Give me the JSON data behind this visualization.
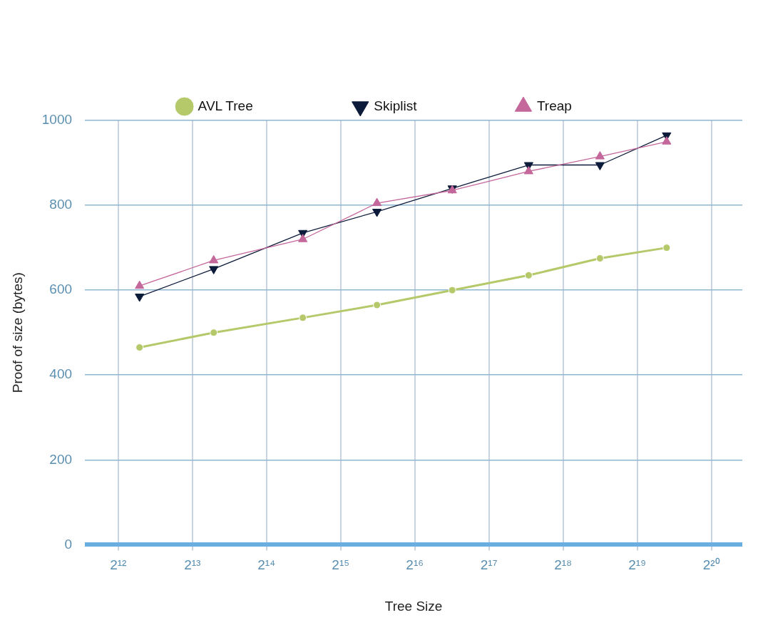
{
  "chart_data": {
    "type": "line",
    "xlabel": "Tree Size",
    "ylabel": "Proof of size (bytes)",
    "x": [
      5000,
      10000,
      23000,
      46000,
      93000,
      190000,
      370000,
      690000
    ],
    "series": [
      {
        "name": "AVL Tree",
        "color": "#b5c96a",
        "marker": "circle",
        "values": [
          465,
          500,
          535,
          565,
          600,
          635,
          675,
          700
        ]
      },
      {
        "name": "Skiplist",
        "color": "#0d1b3a",
        "marker": "triangle-down",
        "values": [
          585,
          650,
          735,
          785,
          840,
          895,
          895,
          965
        ]
      },
      {
        "name": "Treap",
        "color": "#c4679a",
        "marker": "triangle",
        "values": [
          610,
          670,
          720,
          805,
          835,
          880,
          915,
          950
        ]
      }
    ],
    "log": "x",
    "xlim": [
      3000,
      1400000
    ],
    "xticks": [
      {
        "value": 4096,
        "label": "2¹²"
      },
      {
        "value": 8192,
        "label": "2¹³"
      },
      {
        "value": 16384,
        "label": "2¹⁴"
      },
      {
        "value": 32768,
        "label": "2¹⁵"
      },
      {
        "value": 65536,
        "label": "2¹⁶"
      },
      {
        "value": 131072,
        "label": "2¹⁷"
      },
      {
        "value": 262144,
        "label": "2¹⁸"
      },
      {
        "value": 524288,
        "label": "2¹⁹"
      },
      {
        "value": 1048576,
        "label": "2²⁰"
      }
    ],
    "ylim": [
      0,
      1000
    ],
    "yticks": [
      0,
      200,
      400,
      600,
      800,
      1000
    ],
    "grid": true,
    "legend": "top",
    "line_style": "solid"
  }
}
